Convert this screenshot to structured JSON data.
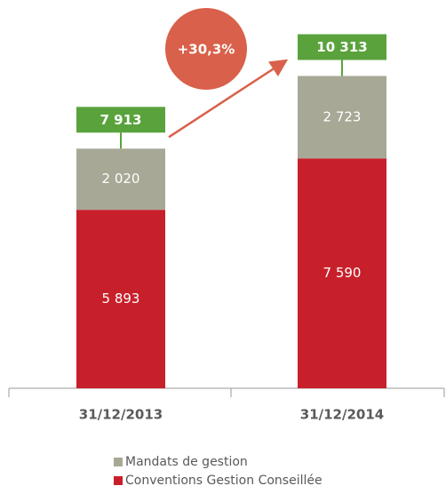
{
  "chart_data": {
    "type": "stacked_bar",
    "categories": [
      "31/12/2013",
      "31/12/2014"
    ],
    "series": [
      {
        "name": "Conventions Gestion Conseillée",
        "color": "#c8202a",
        "values": [
          5893,
          7590
        ],
        "value_labels": [
          "5 893",
          "7 590"
        ]
      },
      {
        "name": "Mandats de gestion",
        "color": "#a8a896",
        "values": [
          2020,
          2723
        ],
        "value_labels": [
          "2 020",
          "2 723"
        ]
      }
    ],
    "totals": [
      7913,
      10313
    ],
    "total_labels": [
      "7 913",
      "10 313"
    ],
    "total_color": "#5aa33c",
    "annotation": "+30,3%",
    "annotation_color": "#d9604a",
    "ylim": [
      0,
      12000
    ]
  }
}
